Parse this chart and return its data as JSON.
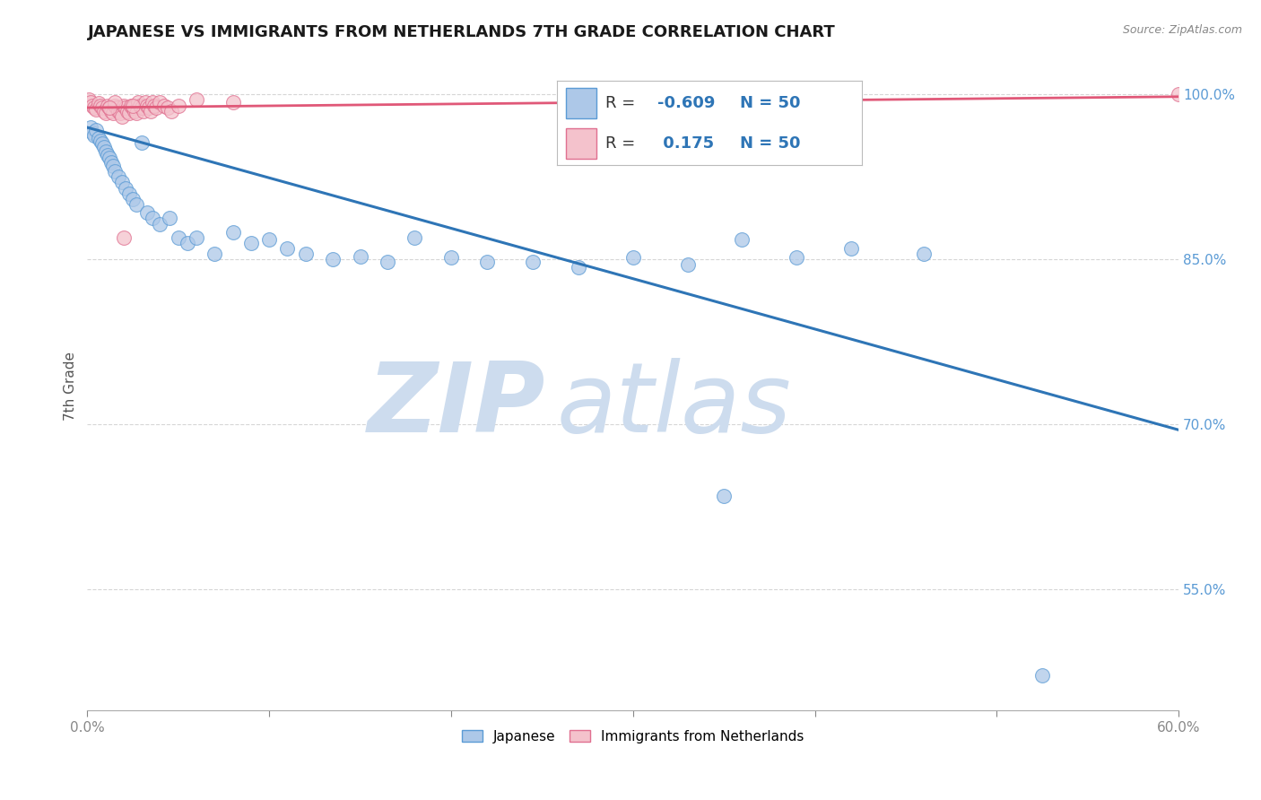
{
  "title": "JAPANESE VS IMMIGRANTS FROM NETHERLANDS 7TH GRADE CORRELATION CHART",
  "source": "Source: ZipAtlas.com",
  "ylabel": "7th Grade",
  "xlim": [
    0.0,
    0.6
  ],
  "ylim": [
    0.44,
    1.03
  ],
  "R_blue": -0.609,
  "N_blue": 50,
  "R_pink": 0.175,
  "N_pink": 50,
  "blue_color": "#adc8e8",
  "blue_edge_color": "#5b9bd5",
  "blue_line_color": "#2e75b6",
  "pink_color": "#f4c2cc",
  "pink_edge_color": "#e07090",
  "pink_line_color": "#e05878",
  "background_color": "#ffffff",
  "watermark_zip_color": "#cddcee",
  "watermark_atlas_color": "#cddcee",
  "grid_color": "#cccccc",
  "ytick_color": "#5b9bd5",
  "blue_trend_x0": 0.0,
  "blue_trend_y0": 0.97,
  "blue_trend_x1": 0.6,
  "blue_trend_y1": 0.695,
  "pink_trend_x0": 0.0,
  "pink_trend_y0": 0.988,
  "pink_trend_x1": 0.6,
  "pink_trend_y1": 0.998,
  "blue_scatter_x": [
    0.002,
    0.003,
    0.004,
    0.005,
    0.006,
    0.007,
    0.008,
    0.009,
    0.01,
    0.011,
    0.012,
    0.013,
    0.014,
    0.015,
    0.017,
    0.019,
    0.021,
    0.023,
    0.025,
    0.027,
    0.03,
    0.033,
    0.036,
    0.04,
    0.045,
    0.05,
    0.055,
    0.06,
    0.07,
    0.08,
    0.09,
    0.1,
    0.11,
    0.12,
    0.135,
    0.15,
    0.165,
    0.18,
    0.2,
    0.22,
    0.245,
    0.27,
    0.3,
    0.33,
    0.36,
    0.39,
    0.42,
    0.46,
    0.35,
    0.525
  ],
  "blue_scatter_y": [
    0.97,
    0.965,
    0.963,
    0.968,
    0.96,
    0.958,
    0.955,
    0.952,
    0.948,
    0.945,
    0.942,
    0.938,
    0.935,
    0.93,
    0.925,
    0.92,
    0.915,
    0.91,
    0.905,
    0.9,
    0.956,
    0.893,
    0.888,
    0.882,
    0.888,
    0.87,
    0.865,
    0.87,
    0.855,
    0.875,
    0.865,
    0.868,
    0.86,
    0.855,
    0.85,
    0.853,
    0.848,
    0.87,
    0.852,
    0.848,
    0.848,
    0.843,
    0.852,
    0.845,
    0.868,
    0.852,
    0.86,
    0.855,
    0.635,
    0.472
  ],
  "pink_scatter_x": [
    0.001,
    0.002,
    0.003,
    0.004,
    0.005,
    0.006,
    0.007,
    0.008,
    0.009,
    0.01,
    0.011,
    0.012,
    0.013,
    0.014,
    0.015,
    0.016,
    0.017,
    0.018,
    0.019,
    0.02,
    0.021,
    0.022,
    0.023,
    0.024,
    0.025,
    0.026,
    0.027,
    0.028,
    0.029,
    0.03,
    0.031,
    0.032,
    0.033,
    0.034,
    0.035,
    0.036,
    0.037,
    0.038,
    0.04,
    0.042,
    0.044,
    0.046,
    0.05,
    0.02,
    0.015,
    0.012,
    0.06,
    0.025,
    0.08,
    0.6
  ],
  "pink_scatter_y": [
    0.995,
    0.993,
    0.99,
    0.988,
    0.986,
    0.992,
    0.99,
    0.988,
    0.985,
    0.983,
    0.99,
    0.988,
    0.985,
    0.983,
    0.99,
    0.988,
    0.985,
    0.983,
    0.98,
    0.99,
    0.988,
    0.985,
    0.983,
    0.99,
    0.988,
    0.985,
    0.983,
    0.993,
    0.99,
    0.988,
    0.985,
    0.993,
    0.99,
    0.988,
    0.985,
    0.993,
    0.99,
    0.988,
    0.993,
    0.99,
    0.988,
    0.985,
    0.99,
    0.87,
    0.993,
    0.988,
    0.995,
    0.99,
    0.993,
    1.0
  ]
}
